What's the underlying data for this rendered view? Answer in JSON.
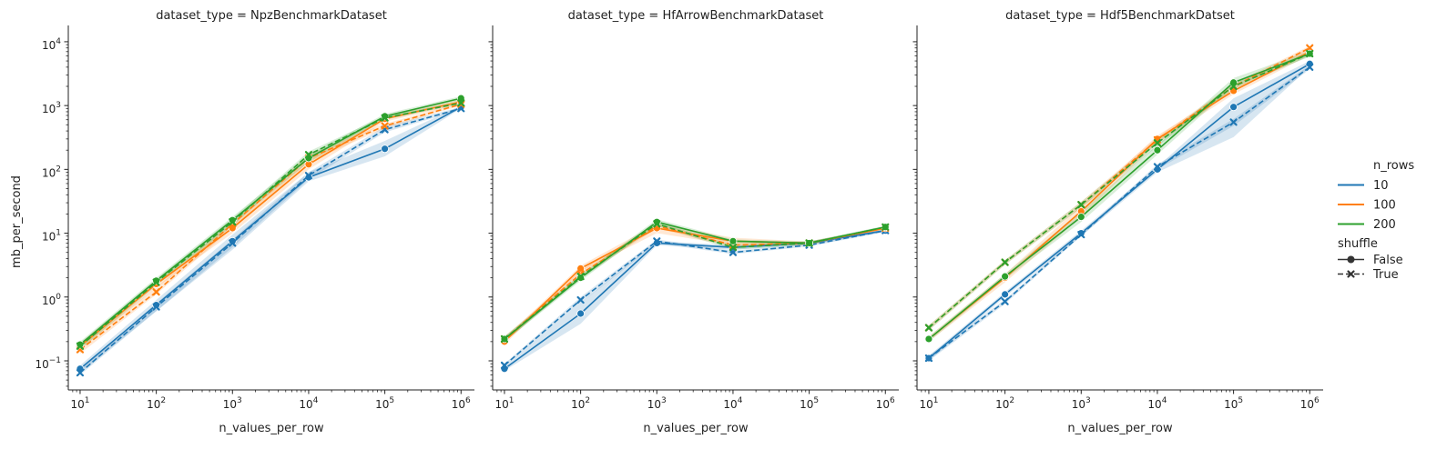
{
  "figure": {
    "y_label": "mb_per_second",
    "x_label": "n_values_per_row"
  },
  "legend": {
    "hue_title": "n_rows",
    "style_title": "shuffle",
    "hue_entries": [
      {
        "label": "10",
        "color": "#1f77b4"
      },
      {
        "label": "100",
        "color": "#ff7f0e"
      },
      {
        "label": "200",
        "color": "#2ca02c"
      }
    ],
    "style_entries": [
      {
        "label": "False",
        "marker": "circle",
        "dash": "solid"
      },
      {
        "label": "True",
        "marker": "x",
        "dash": "dashed"
      }
    ]
  },
  "chart_data": [
    {
      "type": "line",
      "title": "dataset_type = NpzBenchmarkDataset",
      "xlabel": "n_values_per_row",
      "ylabel": "mb_per_second",
      "xscale": "log",
      "yscale": "log",
      "xlim": [
        7,
        1500000
      ],
      "ylim": [
        0.035,
        18000
      ],
      "x_ticks": [
        10,
        100,
        1000,
        10000,
        100000,
        1000000
      ],
      "x_tick_labels": [
        [
          "10",
          "1"
        ],
        [
          "10",
          "2"
        ],
        [
          "10",
          "3"
        ],
        [
          "10",
          "4"
        ],
        [
          "10",
          "5"
        ],
        [
          "10",
          "6"
        ]
      ],
      "y_ticks": [
        0.1,
        1,
        10,
        100,
        1000,
        10000
      ],
      "y_tick_labels": [
        [
          "10",
          "−1"
        ],
        [
          "10",
          "0"
        ],
        [
          "10",
          "1"
        ],
        [
          "10",
          "2"
        ],
        [
          "10",
          "3"
        ],
        [
          "10",
          "4"
        ]
      ],
      "x": [
        10,
        100,
        1000,
        10000,
        100000,
        1000000
      ],
      "series": [
        {
          "name": "10",
          "shuffle": "False",
          "color": "#1f77b4",
          "values": [
            0.075,
            0.75,
            7.5,
            75,
            210,
            950
          ],
          "ci_low": [
            0.065,
            0.6,
            5.5,
            65,
            160,
            900
          ],
          "ci_high": [
            0.085,
            0.9,
            9.5,
            90,
            280,
            1000
          ]
        },
        {
          "name": "10",
          "shuffle": "True",
          "color": "#1f77b4",
          "values": [
            0.065,
            0.7,
            7,
            80,
            420,
            900
          ],
          "ci_low": [
            0.06,
            0.6,
            6,
            70,
            380,
            860
          ],
          "ci_high": [
            0.075,
            0.8,
            8,
            90,
            470,
            950
          ]
        },
        {
          "name": "100",
          "shuffle": "False",
          "color": "#ff7f0e",
          "values": [
            0.17,
            1.6,
            12,
            120,
            620,
            1150
          ],
          "ci_low": [
            0.15,
            1.4,
            10,
            100,
            560,
            1050
          ],
          "ci_high": [
            0.19,
            1.8,
            14,
            140,
            700,
            1250
          ]
        },
        {
          "name": "100",
          "shuffle": "True",
          "color": "#ff7f0e",
          "values": [
            0.15,
            1.2,
            14,
            150,
            480,
            1050
          ],
          "ci_low": [
            0.13,
            1.1,
            12,
            130,
            440,
            1000
          ],
          "ci_high": [
            0.17,
            1.4,
            16,
            170,
            520,
            1100
          ]
        },
        {
          "name": "200",
          "shuffle": "False",
          "color": "#2ca02c",
          "values": [
            0.18,
            1.8,
            16,
            150,
            680,
            1300
          ],
          "ci_low": [
            0.16,
            1.6,
            14,
            130,
            620,
            1200
          ],
          "ci_high": [
            0.2,
            2.0,
            18,
            170,
            740,
            1400
          ]
        },
        {
          "name": "200",
          "shuffle": "True",
          "color": "#2ca02c",
          "values": [
            0.17,
            1.7,
            15,
            170,
            640,
            1100
          ],
          "ci_low": [
            0.15,
            1.5,
            13,
            150,
            600,
            1050
          ],
          "ci_high": [
            0.19,
            1.9,
            17,
            190,
            690,
            1150
          ]
        }
      ]
    },
    {
      "type": "line",
      "title": "dataset_type = HfArrowBenchmarkDataset",
      "xlabel": "n_values_per_row",
      "ylabel": "",
      "xscale": "log",
      "yscale": "log",
      "xlim": [
        7,
        1500000
      ],
      "ylim": [
        0.035,
        18000
      ],
      "x_ticks": [
        10,
        100,
        1000,
        10000,
        100000,
        1000000
      ],
      "x_tick_labels": [
        [
          "10",
          "1"
        ],
        [
          "10",
          "2"
        ],
        [
          "10",
          "3"
        ],
        [
          "10",
          "4"
        ],
        [
          "10",
          "5"
        ],
        [
          "10",
          "6"
        ]
      ],
      "y_ticks": [
        0.1,
        1,
        10,
        100,
        1000,
        10000
      ],
      "y_tick_labels": [],
      "x": [
        10,
        100,
        1000,
        10000,
        100000,
        1000000
      ],
      "series": [
        {
          "name": "10",
          "shuffle": "False",
          "color": "#1f77b4",
          "values": [
            0.075,
            0.55,
            7,
            6,
            7,
            11
          ],
          "ci_low": [
            0.07,
            0.38,
            6.5,
            5.5,
            6.5,
            10.5
          ],
          "ci_high": [
            0.08,
            0.8,
            7.5,
            6.5,
            7.5,
            11.5
          ]
        },
        {
          "name": "10",
          "shuffle": "True",
          "color": "#1f77b4",
          "values": [
            0.085,
            0.9,
            7.5,
            5,
            6.5,
            11
          ],
          "ci_low": [
            0.08,
            0.8,
            7,
            4.7,
            6.2,
            10.5
          ],
          "ci_high": [
            0.09,
            1.0,
            8,
            5.3,
            6.8,
            11.5
          ]
        },
        {
          "name": "100",
          "shuffle": "False",
          "color": "#ff7f0e",
          "values": [
            0.2,
            2.8,
            12,
            7.5,
            7,
            12
          ],
          "ci_low": [
            0.18,
            2.5,
            10,
            6.5,
            6.6,
            11.5
          ],
          "ci_high": [
            0.22,
            3.1,
            14,
            8.5,
            7.4,
            12.5
          ]
        },
        {
          "name": "100",
          "shuffle": "True",
          "color": "#ff7f0e",
          "values": [
            0.22,
            2.3,
            13,
            6.5,
            7,
            12
          ],
          "ci_low": [
            0.2,
            2.0,
            12,
            6,
            6.6,
            11.5
          ],
          "ci_high": [
            0.24,
            2.6,
            14,
            7,
            7.4,
            12.5
          ]
        },
        {
          "name": "200",
          "shuffle": "False",
          "color": "#2ca02c",
          "values": [
            0.22,
            2.0,
            15,
            7.5,
            7,
            12.5
          ],
          "ci_low": [
            0.2,
            1.8,
            13.5,
            7,
            6.6,
            12
          ],
          "ci_high": [
            0.24,
            2.2,
            16.5,
            8,
            7.4,
            13
          ]
        },
        {
          "name": "200",
          "shuffle": "True",
          "color": "#2ca02c",
          "values": [
            0.22,
            2.1,
            14,
            6,
            7,
            12.5
          ],
          "ci_low": [
            0.2,
            1.9,
            13,
            5.5,
            6.6,
            12
          ],
          "ci_high": [
            0.24,
            2.3,
            15,
            6.5,
            7.4,
            13
          ]
        }
      ]
    },
    {
      "type": "line",
      "title": "dataset_type = Hdf5BenchmarkDatset",
      "xlabel": "n_values_per_row",
      "ylabel": "",
      "xscale": "log",
      "yscale": "log",
      "xlim": [
        7,
        1500000
      ],
      "ylim": [
        0.035,
        18000
      ],
      "x_ticks": [
        10,
        100,
        1000,
        10000,
        100000,
        1000000
      ],
      "x_tick_labels": [
        [
          "10",
          "1"
        ],
        [
          "10",
          "2"
        ],
        [
          "10",
          "3"
        ],
        [
          "10",
          "4"
        ],
        [
          "10",
          "5"
        ],
        [
          "10",
          "6"
        ]
      ],
      "y_ticks": [
        0.1,
        1,
        10,
        100,
        1000,
        10000
      ],
      "y_tick_labels": [],
      "x": [
        10,
        100,
        1000,
        10000,
        100000,
        1000000
      ],
      "series": [
        {
          "name": "10",
          "shuffle": "False",
          "color": "#1f77b4",
          "values": [
            0.11,
            1.1,
            10,
            100,
            950,
            4500
          ],
          "ci_low": [
            0.1,
            1.0,
            9,
            90,
            320,
            4000
          ],
          "ci_high": [
            0.12,
            1.2,
            11,
            110,
            1300,
            5000
          ]
        },
        {
          "name": "10",
          "shuffle": "True",
          "color": "#1f77b4",
          "values": [
            0.11,
            0.85,
            9.5,
            110,
            550,
            4000
          ],
          "ci_low": [
            0.1,
            0.78,
            9,
            100,
            480,
            3700
          ],
          "ci_high": [
            0.12,
            0.92,
            10,
            120,
            620,
            4300
          ]
        },
        {
          "name": "100",
          "shuffle": "False",
          "color": "#ff7f0e",
          "values": [
            0.22,
            2.0,
            22,
            300,
            1700,
            7000
          ],
          "ci_low": [
            0.2,
            1.7,
            18,
            260,
            1500,
            6200
          ],
          "ci_high": [
            0.24,
            2.3,
            27,
            340,
            1900,
            8200
          ]
        },
        {
          "name": "100",
          "shuffle": "True",
          "color": "#ff7f0e",
          "values": [
            0.33,
            3.5,
            28,
            290,
            2000,
            8000
          ],
          "ci_low": [
            0.3,
            3.2,
            25,
            260,
            1800,
            7400
          ],
          "ci_high": [
            0.36,
            3.8,
            31,
            320,
            2200,
            8600
          ]
        },
        {
          "name": "200",
          "shuffle": "False",
          "color": "#2ca02c",
          "values": [
            0.22,
            2.1,
            18,
            200,
            2300,
            6500
          ],
          "ci_low": [
            0.2,
            1.9,
            15,
            170,
            2000,
            5800
          ],
          "ci_high": [
            0.24,
            2.3,
            22,
            240,
            2700,
            7200
          ]
        },
        {
          "name": "200",
          "shuffle": "True",
          "color": "#2ca02c",
          "values": [
            0.33,
            3.5,
            28,
            260,
            2000,
            6500
          ],
          "ci_low": [
            0.3,
            3.2,
            25,
            230,
            1800,
            6000
          ],
          "ci_high": [
            0.36,
            3.8,
            31,
            290,
            2200,
            7000
          ]
        }
      ]
    }
  ]
}
